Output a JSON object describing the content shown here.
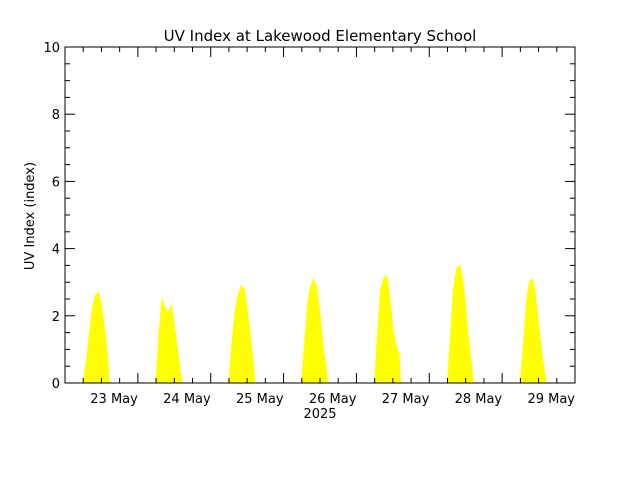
{
  "chart_data": {
    "type": "area",
    "title": "UV Index at Lakewood Elementary School",
    "xlabel": "2025",
    "ylabel": "UV Index (index)",
    "xlim": [
      "2025-05-22 00:00",
      "2025-05-29 00:00"
    ],
    "ylim": [
      0,
      10
    ],
    "y_ticks": [
      "0",
      "2",
      "4",
      "6",
      "8",
      "10"
    ],
    "x_ticks": [
      "23 May",
      "24 May",
      "25 May",
      "26 May",
      "27 May",
      "28 May",
      "29 May"
    ],
    "grid": false,
    "fill_color": "#ffff00",
    "series": [
      {
        "values": [
          [
            "2025-05-22 06:00",
            0.0
          ],
          [
            "2025-05-22 07:00",
            0.6
          ],
          [
            "2025-05-22 08:00",
            1.4
          ],
          [
            "2025-05-22 09:00",
            2.2
          ],
          [
            "2025-05-22 10:00",
            2.6
          ],
          [
            "2025-05-22 11:00",
            2.7
          ],
          [
            "2025-05-22 12:00",
            2.3
          ],
          [
            "2025-05-22 13:00",
            1.6
          ],
          [
            "2025-05-22 14:00",
            0.8
          ],
          [
            "2025-05-22 14:30",
            0.0
          ],
          [
            "2025-05-23 06:00",
            0.0
          ],
          [
            "2025-05-23 07:00",
            1.5
          ],
          [
            "2025-05-23 08:00",
            2.5
          ],
          [
            "2025-05-23 09:00",
            2.2
          ],
          [
            "2025-05-23 10:00",
            2.1
          ],
          [
            "2025-05-23 11:00",
            2.3
          ],
          [
            "2025-05-23 12:00",
            1.7
          ],
          [
            "2025-05-23 13:00",
            1.0
          ],
          [
            "2025-05-23 14:00",
            0.3
          ],
          [
            "2025-05-23 14:30",
            0.0
          ],
          [
            "2025-05-24 06:00",
            0.0
          ],
          [
            "2025-05-24 07:00",
            1.2
          ],
          [
            "2025-05-24 08:00",
            2.1
          ],
          [
            "2025-05-24 09:00",
            2.6
          ],
          [
            "2025-05-24 10:00",
            2.9
          ],
          [
            "2025-05-24 11:00",
            2.8
          ],
          [
            "2025-05-24 12:00",
            2.2
          ],
          [
            "2025-05-24 13:00",
            1.4
          ],
          [
            "2025-05-24 14:00",
            0.6
          ],
          [
            "2025-05-24 14:30",
            0.0
          ],
          [
            "2025-05-25 06:00",
            0.0
          ],
          [
            "2025-05-25 07:00",
            1.3
          ],
          [
            "2025-05-25 08:00",
            2.4
          ],
          [
            "2025-05-25 09:00",
            2.9
          ],
          [
            "2025-05-25 10:00",
            3.1
          ],
          [
            "2025-05-25 11:00",
            2.8
          ],
          [
            "2025-05-25 12:00",
            2.0
          ],
          [
            "2025-05-25 13:00",
            1.1
          ],
          [
            "2025-05-25 14:00",
            0.4
          ],
          [
            "2025-05-25 14:30",
            0.0
          ],
          [
            "2025-05-26 06:00",
            0.0
          ],
          [
            "2025-05-26 07:00",
            1.5
          ],
          [
            "2025-05-26 08:00",
            2.8
          ],
          [
            "2025-05-26 09:00",
            3.1
          ],
          [
            "2025-05-26 10:00",
            3.2
          ],
          [
            "2025-05-26 11:00",
            2.5
          ],
          [
            "2025-05-26 12:00",
            1.6
          ],
          [
            "2025-05-26 13:00",
            1.1
          ],
          [
            "2025-05-26 14:00",
            0.9
          ],
          [
            "2025-05-26 14:30",
            0.0
          ],
          [
            "2025-05-27 06:00",
            0.0
          ],
          [
            "2025-05-27 07:00",
            1.4
          ],
          [
            "2025-05-27 08:00",
            2.8
          ],
          [
            "2025-05-27 09:00",
            3.4
          ],
          [
            "2025-05-27 10:00",
            3.5
          ],
          [
            "2025-05-27 11:00",
            3.1
          ],
          [
            "2025-05-27 12:00",
            2.2
          ],
          [
            "2025-05-27 13:00",
            1.2
          ],
          [
            "2025-05-27 14:00",
            0.4
          ],
          [
            "2025-05-27 14:30",
            0.0
          ],
          [
            "2025-05-28 06:00",
            0.0
          ],
          [
            "2025-05-28 07:00",
            1.1
          ],
          [
            "2025-05-28 08:00",
            2.4
          ],
          [
            "2025-05-28 09:00",
            3.0
          ],
          [
            "2025-05-28 10:00",
            3.1
          ],
          [
            "2025-05-28 11:00",
            2.6
          ],
          [
            "2025-05-28 12:00",
            1.7
          ],
          [
            "2025-05-28 13:00",
            0.9
          ],
          [
            "2025-05-28 14:00",
            0.3
          ],
          [
            "2025-05-28 14:30",
            0.0
          ]
        ]
      }
    ]
  }
}
